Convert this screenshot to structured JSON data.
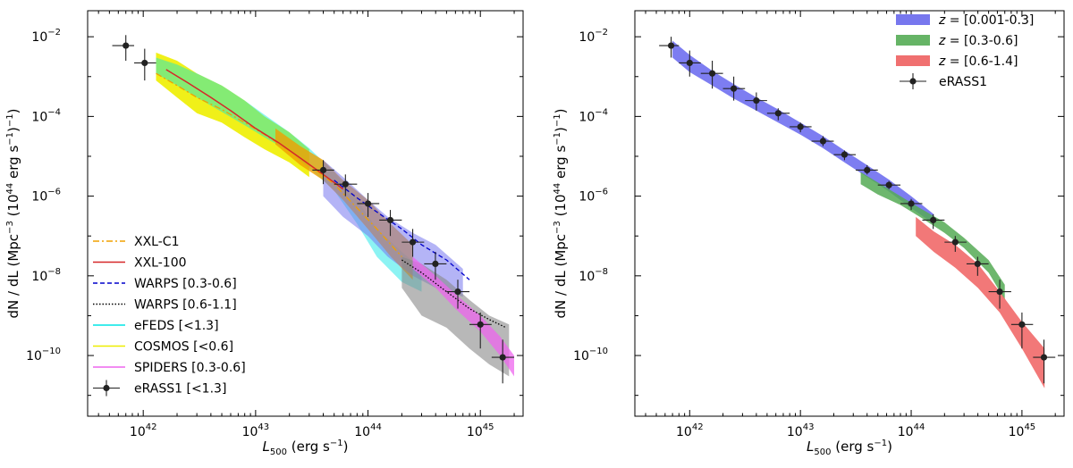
{
  "chart_data": [
    {
      "type": "scatter",
      "panel": "left",
      "xscale": "log",
      "yscale": "log",
      "xlim": [
        3.2e+41,
        2.4e+45
      ],
      "ylim": [
        3e-12,
        0.045
      ],
      "xlabel": "L500 (erg s−1)",
      "xlabel_parts": {
        "sym": "L",
        "sub": "500",
        "rest": " (erg s",
        "sup": "−1",
        "end": ")"
      },
      "ylabel": "dN / dL (Mpc−3 (1044 erg s−1)−1)",
      "ylabel_parts": [
        "dN / dL (Mpc",
        "−3",
        " (10",
        "44",
        " erg s",
        "−1",
        ")",
        "−1",
        ")"
      ],
      "xticks": [
        {
          "value": 1e+42,
          "base": "10",
          "exp": "42"
        },
        {
          "value": 1e+43,
          "base": "10",
          "exp": "43"
        },
        {
          "value": 1e+44,
          "base": "10",
          "exp": "44"
        },
        {
          "value": 1e+45,
          "base": "10",
          "exp": "45"
        }
      ],
      "yticks": [
        {
          "value": 1e-10,
          "base": "10",
          "exp": "−10"
        },
        {
          "value": 1e-08,
          "base": "10",
          "exp": "−8"
        },
        {
          "value": 1e-06,
          "base": "10",
          "exp": "−6"
        },
        {
          "value": 0.0001,
          "base": "10",
          "exp": "−4"
        },
        {
          "value": 0.01,
          "base": "10",
          "exp": "−2"
        }
      ],
      "grid": false,
      "legend_position": "lower-left",
      "legend": [
        {
          "label": "XXL-C1",
          "kind": "line",
          "color": "#f0a000",
          "dash": "7,3,2,3"
        },
        {
          "label": "XXL-100",
          "kind": "line",
          "color": "#d62728",
          "dash": ""
        },
        {
          "label": "WARPS [0.3-0.6]",
          "kind": "line",
          "color": "#0000cc",
          "dash": "5,3"
        },
        {
          "label": "WARPS [0.6-1.1]",
          "kind": "line",
          "color": "#000000",
          "dash": "1.5,2"
        },
        {
          "label": "eFEDS [<1.3]",
          "kind": "line",
          "color": "#00e5e5",
          "dash": ""
        },
        {
          "label": "COSMOS [<0.6]",
          "kind": "line",
          "color": "#eeee00",
          "dash": ""
        },
        {
          "label": "SPIDERS [0.3-0.6]",
          "kind": "line",
          "color": "#ee66ee",
          "dash": ""
        },
        {
          "label": "eRASS1 [<1.3]",
          "kind": "errorbar",
          "color": "#222222",
          "dash": ""
        }
      ],
      "bands": [
        {
          "name": "COSMOS",
          "color": "#eeee00",
          "opacity": 0.9,
          "x": [
            1.3e+42,
            2e+42,
            3e+42,
            5e+42,
            8e+42,
            1.2e+43,
            2e+43,
            3e+43
          ],
          "lo": [
            0.0008,
            0.0003,
            0.00012,
            7e-05,
            3e-05,
            1.5e-05,
            7e-06,
            3e-06
          ],
          "hi": [
            0.004,
            0.0025,
            0.0012,
            0.0006,
            0.00025,
            0.0001,
            4e-05,
            1.5e-05
          ]
        },
        {
          "name": "eFEDS",
          "color": "#00e5e5",
          "opacity": 0.45,
          "x": [
            1.3e+42,
            2e+42,
            3e+42,
            5e+42,
            8e+42,
            1.2e+43,
            2e+43,
            3e+43,
            5e+43,
            8e+43,
            1.2e+44,
            2e+44,
            3e+44
          ],
          "lo": [
            0.0012,
            0.0006,
            0.0003,
            0.00013,
            6e-05,
            3e-05,
            1.3e-05,
            5e-06,
            1.4e-06,
            2e-07,
            3e-08,
            7e-09,
            4e-09
          ],
          "hi": [
            0.003,
            0.002,
            0.0012,
            0.0006,
            0.00025,
            0.00011,
            4e-05,
            1.6e-05,
            4e-06,
            8e-07,
            1.5e-07,
            4e-08,
            1.5e-08
          ]
        },
        {
          "name": "XXL-C1",
          "color": "#f0a000",
          "opacity": 0.8,
          "x": [
            1.5e+43,
            2.5e+43,
            4e+43,
            6e+43,
            1e+44,
            1.6e+44,
            2.5e+44
          ],
          "lo": [
            2e-05,
            6e-06,
            2.5e-06,
            8e-07,
            1.5e-07,
            3e-08,
            8e-09
          ],
          "hi": [
            5e-05,
            1.8e-05,
            8e-06,
            2.5e-06,
            8e-07,
            2e-07,
            6e-08
          ]
        },
        {
          "name": "WARPS [0.3-0.6]",
          "color": "#7777ee",
          "opacity": 0.55,
          "x": [
            4e+43,
            6e+43,
            1e+44,
            1.5e+44,
            2.5e+44,
            4e+44,
            7e+44
          ],
          "lo": [
            1e-06,
            3e-07,
            1e-07,
            3e-08,
            1e-08,
            5e-09,
            3e-09
          ],
          "hi": [
            8e-06,
            3e-06,
            8e-07,
            3e-07,
            1.2e-07,
            6e-08,
            1.5e-08
          ]
        },
        {
          "name": "WARPS [0.6-1.1]",
          "color": "#888888",
          "opacity": 0.6,
          "x": [
            2e+44,
            3e+44,
            5e+44,
            8e+44,
            1.2e+45,
            1.8e+45
          ],
          "lo": [
            5e-09,
            1e-09,
            5e-10,
            1.5e-10,
            6e-11,
            3e-11
          ],
          "hi": [
            3e-08,
            2e-08,
            8e-09,
            2.5e-09,
            1e-09,
            6e-10
          ]
        },
        {
          "name": "SPIDERS",
          "color": "#ee66ee",
          "opacity": 0.75,
          "x": [
            2.5e+44,
            4e+44,
            6e+44,
            1e+45,
            1.5e+45,
            2e+45
          ],
          "lo": [
            1.5e-08,
            5e-09,
            1.5e-09,
            4e-10,
            1e-10,
            3e-11
          ],
          "hi": [
            3e-08,
            1e-08,
            3.5e-09,
            1e-09,
            3e-10,
            1e-10
          ]
        }
      ],
      "lines": [
        {
          "name": "XXL-C1",
          "color": "#f0a000",
          "dash": "7,3,2,3",
          "width": 1.3,
          "x": [
            1.3e+42,
            2e+42,
            3e+42,
            5e+42,
            8e+42,
            1.2e+43,
            2e+43,
            3e+43,
            5e+43,
            8e+43,
            1.2e+44,
            2e+44
          ],
          "y": [
            0.0012,
            0.0006,
            0.0003,
            0.00015,
            7e-05,
            3.5e-05,
            1.4e-05,
            6e-06,
            2e-06,
            5e-07,
            1.5e-07,
            3e-08
          ]
        },
        {
          "name": "XXL-100",
          "color": "#d62728",
          "dash": "",
          "width": 1.5,
          "x": [
            1.6e+42,
            2.5e+42,
            4e+42,
            6e+42,
            1e+43,
            1.6e+43,
            2.5e+43,
            4e+43,
            6e+43
          ],
          "y": [
            0.0015,
            0.0007,
            0.0003,
            0.00014,
            5e-05,
            2.2e-05,
            9e-06,
            3.5e-06,
            1.5e-06
          ]
        },
        {
          "name": "WARPS [0.3-0.6]",
          "color": "#0000cc",
          "dash": "5,3",
          "width": 1.3,
          "x": [
            5e+43,
            8e+43,
            1.2e+44,
            2e+44,
            3e+44,
            5e+44,
            8e+44
          ],
          "y": [
            2.5e-06,
            9e-07,
            4e-07,
            1.5e-07,
            6e-08,
            2.5e-08,
            8e-09
          ]
        },
        {
          "name": "WARPS [0.6-1.1]",
          "color": "#000000",
          "dash": "1.5,2",
          "width": 1.3,
          "x": [
            2e+44,
            3e+44,
            5e+44,
            8e+44,
            1.2e+45,
            1.7e+45
          ],
          "y": [
            2.5e-08,
            1.2e-08,
            4e-09,
            1.5e-09,
            8e-10,
            5e-10
          ]
        }
      ],
      "points": {
        "name": "eRASS1 [<1.3]",
        "color": "#222222",
        "x": [
          7e+41,
          1.03e+42,
          4e+43,
          6.3e+43,
          1e+44,
          1.58e+44,
          2.5e+44,
          3.98e+44,
          6.3e+44,
          1e+45,
          1.58e+45
        ],
        "y": [
          0.006,
          0.0022,
          4.5e-06,
          2e-06,
          6.5e-07,
          2.5e-07,
          7e-08,
          2e-08,
          4e-09,
          6e-10,
          9e-11
        ],
        "ylo": [
          0.0025,
          0.0008,
          2e-06,
          1e-06,
          3e-07,
          1e-07,
          3e-08,
          8e-09,
          1.5e-09,
          1.5e-10,
          2e-11
        ],
        "yhi": [
          0.011,
          0.005,
          8e-06,
          3.5e-06,
          1.2e-06,
          4.5e-07,
          1.5e-07,
          4e-08,
          8e-09,
          1.2e-09,
          2.5e-10
        ],
        "xlo": [
          5.3e+41,
          8.3e+41,
          3.2e+43,
          5e+43,
          8e+43,
          1.26e+44,
          2e+44,
          3.16e+44,
          5e+44,
          8e+44,
          1.26e+45
        ],
        "xhi": [
          8.3e+41,
          1.3e+42,
          5e+43,
          8e+43,
          1.26e+44,
          2e+44,
          3.16e+44,
          5e+44,
          8e+44,
          1.26e+45,
          2e+45
        ]
      }
    },
    {
      "type": "scatter",
      "panel": "right",
      "xscale": "log",
      "yscale": "log",
      "xlim": [
        3.2e+41,
        2.4e+45
      ],
      "ylim": [
        3e-12,
        0.045
      ],
      "xlabel": "L500 (erg s−1)",
      "xlabel_parts": {
        "sym": "L",
        "sub": "500",
        "rest": " (erg s",
        "sup": "−1",
        "end": ")"
      },
      "ylabel": "dN / dL (Mpc−3 (1044 erg s−1)−1)",
      "ylabel_parts": [
        "dN / dL (Mpc",
        "−3",
        " (10",
        "44",
        " erg s",
        "−1",
        ")",
        "−1",
        ")"
      ],
      "xticks": [
        {
          "value": 1e+42,
          "base": "10",
          "exp": "42"
        },
        {
          "value": 1e+43,
          "base": "10",
          "exp": "43"
        },
        {
          "value": 1e+44,
          "base": "10",
          "exp": "44"
        },
        {
          "value": 1e+45,
          "base": "10",
          "exp": "45"
        }
      ],
      "yticks": [
        {
          "value": 1e-10,
          "base": "10",
          "exp": "−10"
        },
        {
          "value": 1e-08,
          "base": "10",
          "exp": "−8"
        },
        {
          "value": 1e-06,
          "base": "10",
          "exp": "−6"
        },
        {
          "value": 0.0001,
          "base": "10",
          "exp": "−4"
        },
        {
          "value": 0.01,
          "base": "10",
          "exp": "−2"
        }
      ],
      "grid": false,
      "legend_position": "top-right",
      "legend": [
        {
          "label": "z = [0.001-0.3]",
          "zsym": "z",
          "range": " = [0.001-0.3]",
          "kind": "patch",
          "color": "#7777ee"
        },
        {
          "label": "z = [0.3-0.6]",
          "zsym": "z",
          "range": " = [0.3-0.6]",
          "kind": "patch",
          "color": "#66b466"
        },
        {
          "label": "z = [0.6-1.4]",
          "zsym": "z",
          "range": " = [0.6-1.4]",
          "kind": "patch",
          "color": "#f07070"
        },
        {
          "label": "eRASS1",
          "zsym": "",
          "range": "eRASS1",
          "kind": "errorbar",
          "color": "#222222"
        }
      ],
      "bands": [
        {
          "name": "z = [0.001-0.3]",
          "color": "#6666ee",
          "opacity": 0.85,
          "x": [
            7e+41,
            1e+42,
            1.6e+42,
            2.5e+42,
            4e+42,
            6.3e+42,
            1e+43,
            1.6e+43,
            2.5e+43,
            4e+43,
            6.3e+43,
            1e+44,
            1.6e+44
          ],
          "lo": [
            0.003,
            0.0013,
            0.0006,
            0.00028,
            0.00014,
            7e-05,
            3.5e-05,
            1.6e-05,
            7e-06,
            3e-06,
            1.3e-06,
            5e-07,
            2e-07
          ],
          "hi": [
            0.008,
            0.0035,
            0.0014,
            0.00065,
            0.0003,
            0.00015,
            7e-05,
            3.2e-05,
            1.4e-05,
            6e-06,
            2.6e-06,
            1e-06,
            3.5e-07
          ]
        },
        {
          "name": "z = [0.3-0.6]",
          "color": "#55aa55",
          "opacity": 0.85,
          "x": [
            3.5e+43,
            5e+43,
            8e+43,
            1.2e+44,
            2e+44,
            3e+44,
            5e+44,
            7e+44
          ],
          "lo": [
            2e-06,
            1.1e-06,
            6e-07,
            3e-07,
            1.2e-07,
            5e-08,
            1.2e-08,
            2.5e-09
          ],
          "hi": [
            4e-06,
            2.2e-06,
            1e-06,
            5e-07,
            2.2e-07,
            9e-08,
            2.5e-08,
            6e-09
          ]
        },
        {
          "name": "z = [0.6-1.4]",
          "color": "#f06060",
          "opacity": 0.85,
          "x": [
            1.1e+44,
            1.6e+44,
            2.5e+44,
            4e+44,
            6.3e+44,
            1e+45,
            1.6e+45
          ],
          "lo": [
            1e-07,
            4e-08,
            1.6e-08,
            5e-09,
            1.2e-09,
            1.5e-10,
            1.5e-11
          ],
          "hi": [
            3e-07,
            1.3e-07,
            6e-08,
            2e-08,
            4e-09,
            7e-10,
            1.5e-10
          ]
        }
      ],
      "lines": [],
      "points": {
        "name": "eRASS1",
        "color": "#222222",
        "x": [
          6.8e+41,
          1e+42,
          1.6e+42,
          2.5e+42,
          4e+42,
          6.3e+42,
          1e+43,
          1.6e+43,
          2.5e+43,
          4e+43,
          6.3e+43,
          1e+44,
          1.58e+44,
          2.5e+44,
          3.98e+44,
          6.3e+44,
          1e+45,
          1.58e+45
        ],
        "y": [
          0.006,
          0.0022,
          0.0012,
          0.0005,
          0.00025,
          0.00012,
          5.5e-05,
          2.4e-05,
          1.1e-05,
          4.5e-06,
          1.9e-06,
          6.5e-07,
          2.5e-07,
          7e-08,
          2e-08,
          4e-09,
          6e-10,
          9e-11
        ],
        "ylo": [
          0.003,
          0.001,
          0.0005,
          0.00025,
          0.00014,
          8e-05,
          4e-05,
          1.8e-05,
          8e-06,
          3.5e-06,
          1.5e-06,
          4.5e-07,
          1.5e-07,
          4e-08,
          1e-08,
          1.5e-09,
          1.5e-10,
          2e-11
        ],
        "yhi": [
          0.01,
          0.0045,
          0.0025,
          0.001,
          0.0004,
          0.00016,
          7e-05,
          3.2e-05,
          1.4e-05,
          6e-06,
          2.4e-06,
          8.5e-07,
          3.5e-07,
          1e-07,
          3e-08,
          8e-09,
          1.2e-09,
          2.5e-10
        ],
        "xlo": [
          5.3e+41,
          8e+41,
          1.26e+42,
          2e+42,
          3.16e+42,
          5e+42,
          8e+42,
          1.26e+43,
          2e+43,
          3.16e+43,
          5e+43,
          8e+43,
          1.26e+44,
          2e+44,
          3.16e+44,
          5e+44,
          8e+44,
          1.26e+45
        ],
        "xhi": [
          8e+41,
          1.26e+42,
          2e+42,
          3.16e+42,
          5e+42,
          8e+42,
          1.26e+43,
          2e+43,
          3.16e+43,
          5e+43,
          8e+43,
          1.26e+44,
          2e+44,
          3.16e+44,
          5e+44,
          8e+44,
          1.26e+45,
          2e+45
        ]
      }
    }
  ]
}
